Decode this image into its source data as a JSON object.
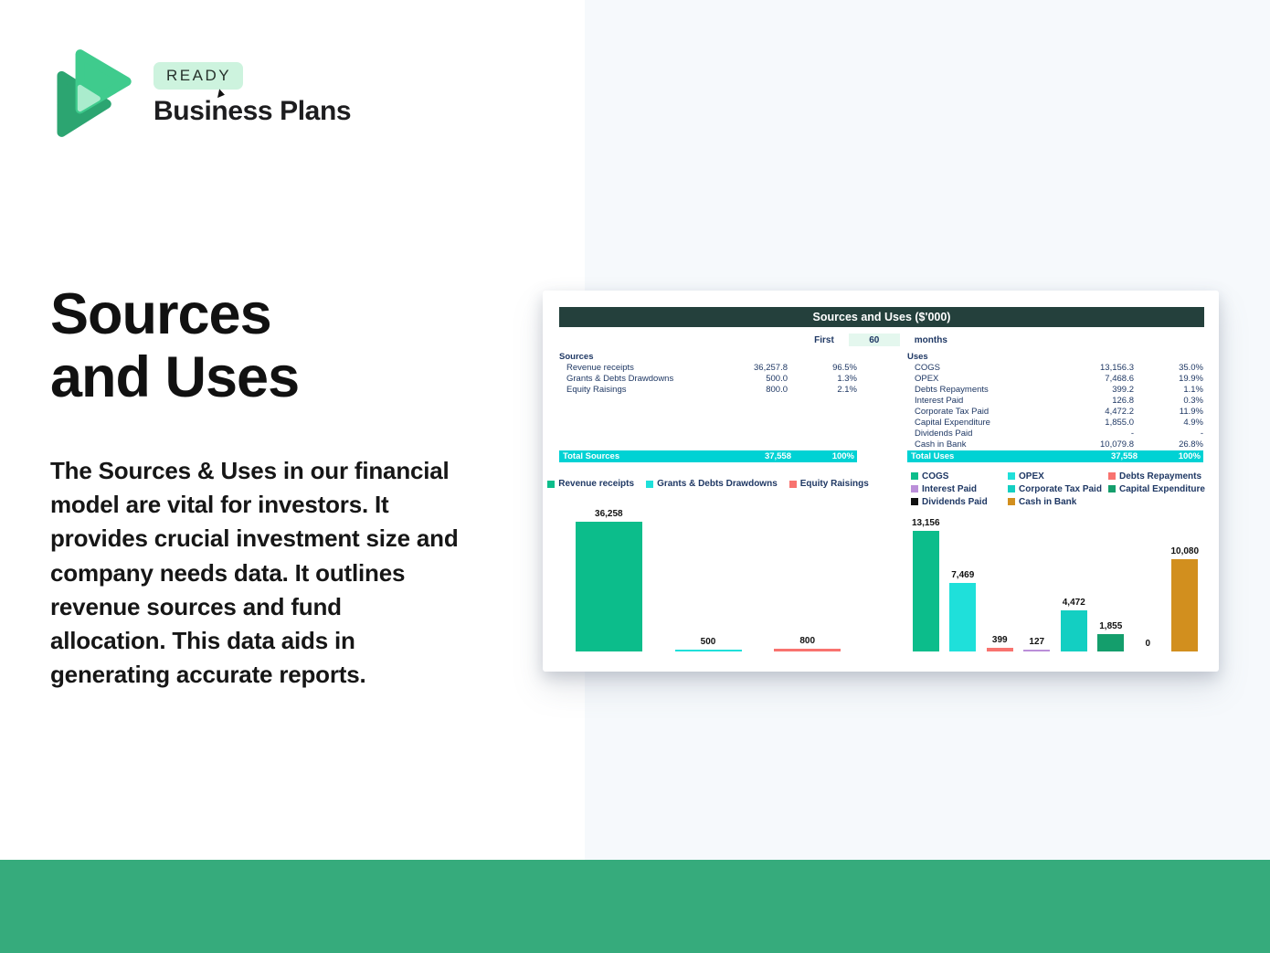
{
  "brand": {
    "badge": "READY",
    "name": "Business Plans"
  },
  "hero": {
    "title_line1": "Sources",
    "title_line2": "and Uses",
    "paragraph": "The Sources & Uses in our financial model are vital for investors. It provides crucial investment size and company needs data. It outlines revenue sources and fund allocation. This data aids in generating accurate reports."
  },
  "spreadsheet": {
    "title": "Sources and Uses ($'000)",
    "period": {
      "prefix": "First",
      "value": "60",
      "suffix": "months"
    },
    "sources": {
      "header": "Sources",
      "rows": [
        {
          "label": "Revenue receipts",
          "value": "36,257.8",
          "pct": "96.5%"
        },
        {
          "label": "Grants & Debts Drawdowns",
          "value": "500.0",
          "pct": "1.3%"
        },
        {
          "label": "Equity Raisings",
          "value": "800.0",
          "pct": "2.1%"
        }
      ],
      "total": {
        "label": "Total Sources",
        "value": "37,558",
        "pct": "100%"
      }
    },
    "uses": {
      "header": "Uses",
      "rows": [
        {
          "label": "COGS",
          "value": "13,156.3",
          "pct": "35.0%"
        },
        {
          "label": "OPEX",
          "value": "7,468.6",
          "pct": "19.9%"
        },
        {
          "label": "Debts Repayments",
          "value": "399.2",
          "pct": "1.1%"
        },
        {
          "label": "Interest Paid",
          "value": "126.8",
          "pct": "0.3%"
        },
        {
          "label": "Corporate Tax Paid",
          "value": "4,472.2",
          "pct": "11.9%"
        },
        {
          "label": "Capital Expenditure",
          "value": "1,855.0",
          "pct": "4.9%"
        },
        {
          "label": "Dividends Paid",
          "value": "-",
          "pct": "-"
        },
        {
          "label": "Cash in Bank",
          "value": "10,079.8",
          "pct": "26.8%"
        }
      ],
      "total": {
        "label": "Total Uses",
        "value": "37,558",
        "pct": "100%"
      }
    }
  },
  "chart_data": [
    {
      "type": "bar",
      "title": "Sources chart",
      "categories": [
        "Revenue receipts",
        "Grants & Debts Drawdowns",
        "Equity Raisings"
      ],
      "values": [
        36257.8,
        500,
        800
      ],
      "labels": [
        "36,258",
        "500",
        "800"
      ],
      "colors": [
        "#0cbd8b",
        "#1fe0da",
        "#f8736f"
      ],
      "legend_position": "top",
      "grid": false,
      "ylim": [
        0,
        36258
      ]
    },
    {
      "type": "bar",
      "title": "Uses chart",
      "categories": [
        "COGS",
        "OPEX",
        "Debts Repayments",
        "Interest Paid",
        "Corporate Tax Paid",
        "Capital Expenditure",
        "Dividends Paid",
        "Cash in Bank"
      ],
      "values": [
        13156.3,
        7468.6,
        399.2,
        126.8,
        4472.2,
        1855.0,
        0,
        10079.8
      ],
      "labels": [
        "13,156",
        "7,469",
        "399",
        "127",
        "4,472",
        "1,855",
        "0",
        "10,080"
      ],
      "colors": [
        "#0cbd8b",
        "#1fe0da",
        "#f8736f",
        "#bb8fd9",
        "#13cfc2",
        "#149e6c",
        "#111111",
        "#d28f1e"
      ],
      "legend_position": "top",
      "grid": false,
      "ylim": [
        0,
        13157
      ]
    }
  ],
  "colors": {
    "footer_green": "#36ab7c",
    "panel_light": "#f6f9fc",
    "card_header_dark": "#24403c",
    "total_row_cyan": "#00d2d4",
    "table_text_navy": "#1f3864",
    "badge_mint": "#cdf3de",
    "logo_green_light": "#3fcb8d",
    "logo_green_dark": "#2ca571",
    "logo_green_pale": "#aaeccd",
    "period_input_mint": "#e4f7ee"
  }
}
